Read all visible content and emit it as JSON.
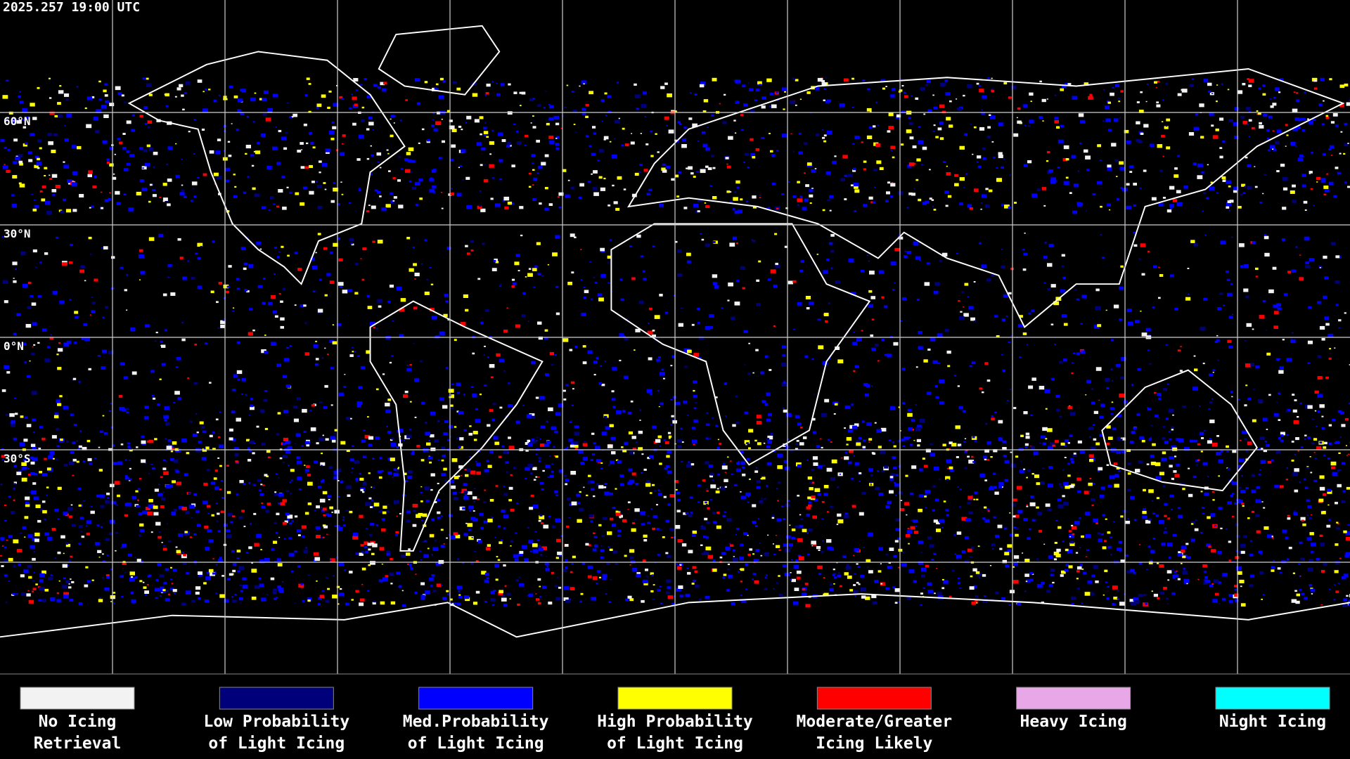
{
  "header": {
    "timestamp": "2025.257 19:00 UTC"
  },
  "map": {
    "latitude_labels": [
      "60°N",
      "30°N",
      "0°N",
      "30°S"
    ]
  },
  "legend": {
    "items": [
      {
        "label_lines": [
          "No Icing",
          "Retrieval"
        ],
        "color": "#f2f2f2"
      },
      {
        "label_lines": [
          "Low Probability",
          "of Light Icing"
        ],
        "color": "#00007a"
      },
      {
        "label_lines": [
          "Med.Probability",
          "of Light Icing"
        ],
        "color": "#0000ff"
      },
      {
        "label_lines": [
          "High Probability",
          "of Light Icing"
        ],
        "color": "#ffff00"
      },
      {
        "label_lines": [
          "Moderate/Greater",
          "Icing Likely"
        ],
        "color": "#ff0000"
      },
      {
        "label_lines": [
          "Heavy Icing"
        ],
        "color": "#e8a8e8"
      },
      {
        "label_lines": [
          "Night Icing"
        ],
        "color": "#00ffff"
      }
    ]
  }
}
